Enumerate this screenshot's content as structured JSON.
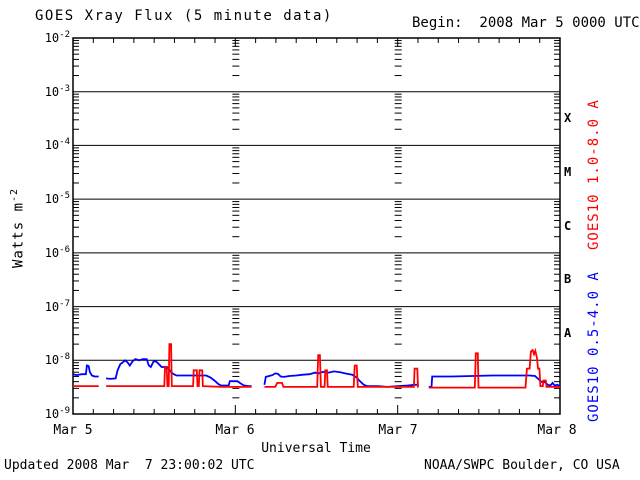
{
  "page": {
    "title": "GOES Xray Flux (5 minute data)",
    "begin_label": "Begin:  2008 Mar 5 0000 UTC",
    "footer_updated": "Updated 2008 Mar  7 23:00:02 UTC",
    "footer_source": "NOAA/SWPC Boulder, CO USA"
  },
  "chart_data": {
    "type": "line",
    "title": "GOES Xray Flux (5 minute data)",
    "begin": "Begin:  2008 Mar 5 0000 UTC",
    "xlabel": "Universal Time",
    "ylabel": {
      "text": "Watts m",
      "sup": "-2"
    },
    "x_axis": {
      "unit": "hours from 2008 Mar 5 0000 UTC",
      "range_hours": [
        0,
        72
      ],
      "major_tick_hours": 24,
      "minor_tick_hours": 3,
      "tick_labels": [
        "Mar 5",
        "Mar 6",
        "Mar 7",
        "Mar 8"
      ]
    },
    "y_axis": {
      "scale": "log",
      "range_watts_per_m2": [
        1e-09,
        0.01
      ],
      "tick_exponents": [
        -2,
        -3,
        -4,
        -5,
        -6,
        -7,
        -8,
        -9
      ],
      "grid": "horizontal solid lines at each decade; log minor ticks on side axes and at interior day boundaries"
    },
    "flare_class_bands": [
      "X",
      "M",
      "C",
      "B",
      "A"
    ],
    "colors": {
      "axis": "#000000",
      "red_series": "#ff0000",
      "blue_series": "#0000ff"
    },
    "series": [
      {
        "name": "GOES10 1.0-8.0 A",
        "color": "#ff0000",
        "segments": [
          [
            [
              0,
              3.3e-09
            ],
            [
              3.8,
              3.3e-09
            ]
          ],
          [
            [
              4.9,
              3.3e-09
            ],
            [
              13.5,
              3.3e-09
            ],
            [
              13.6,
              7.5e-09
            ],
            [
              13.85,
              7.5e-09
            ],
            [
              13.95,
              3.3e-09
            ],
            [
              14.15,
              3.3e-09
            ],
            [
              14.25,
              2e-08
            ],
            [
              14.5,
              2e-08
            ],
            [
              14.6,
              3.3e-09
            ],
            [
              17.75,
              3.3e-09
            ],
            [
              17.85,
              6.5e-09
            ],
            [
              18.3,
              6.5e-09
            ],
            [
              18.4,
              3.3e-09
            ],
            [
              18.6,
              3.3e-09
            ],
            [
              18.7,
              6.5e-09
            ],
            [
              19.1,
              6.5e-09
            ],
            [
              19.2,
              3.3e-09
            ],
            [
              22,
              3.2e-09
            ],
            [
              26.4,
              3.2e-09
            ]
          ],
          [
            [
              28.3,
              3.2e-09
            ],
            [
              29.9,
              3.2e-09
            ],
            [
              30.2,
              3.8e-09
            ],
            [
              30.9,
              3.8e-09
            ],
            [
              31.1,
              3.2e-09
            ],
            [
              36.1,
              3.2e-09
            ],
            [
              36.25,
              1.25e-08
            ],
            [
              36.5,
              1.25e-08
            ],
            [
              36.65,
              3.2e-09
            ],
            [
              37.2,
              3.2e-09
            ],
            [
              37.3,
              6.5e-09
            ],
            [
              37.55,
              6.5e-09
            ],
            [
              37.65,
              3.2e-09
            ],
            [
              41.5,
              3.2e-09
            ],
            [
              41.65,
              8e-09
            ],
            [
              41.95,
              8e-09
            ],
            [
              42.1,
              3.2e-09
            ],
            [
              50.4,
              3.2e-09
            ],
            [
              50.5,
              7e-09
            ],
            [
              50.9,
              7e-09
            ],
            [
              51.0,
              3.2e-09
            ],
            [
              51.1,
              3.2e-09
            ]
          ],
          [
            [
              52.6,
              3.1e-09
            ],
            [
              59.4,
              3.1e-09
            ],
            [
              59.55,
              1.35e-08
            ],
            [
              59.85,
              1.35e-08
            ],
            [
              59.95,
              3.1e-09
            ],
            [
              66.9,
              3.1e-09
            ],
            [
              67.1,
              7e-09
            ],
            [
              67.5,
              7e-09
            ],
            [
              67.7,
              1.45e-08
            ],
            [
              67.95,
              1.55e-08
            ],
            [
              68.15,
              1.3e-08
            ],
            [
              68.35,
              1.5e-08
            ],
            [
              68.6,
              1.1e-08
            ],
            [
              68.75,
              7e-09
            ],
            [
              68.95,
              7e-09
            ],
            [
              69.1,
              3.3e-09
            ],
            [
              69.45,
              3.3e-09
            ],
            [
              69.55,
              4.2e-09
            ],
            [
              69.9,
              4.2e-09
            ],
            [
              70.0,
              3.2e-09
            ],
            [
              72,
              3.2e-09
            ]
          ]
        ]
      },
      {
        "name": "GOES10 0.5-4.0 A",
        "color": "#0000ff",
        "segments": [
          [
            [
              0,
              5.5e-09
            ],
            [
              0.5,
              5.3e-09
            ],
            [
              1.3,
              5.5e-09
            ],
            [
              1.9,
              5.5e-09
            ],
            [
              2.05,
              8e-09
            ],
            [
              2.3,
              7.8e-09
            ],
            [
              2.5,
              6e-09
            ],
            [
              2.8,
              5.2e-09
            ],
            [
              3.2,
              5e-09
            ],
            [
              3.8,
              5e-09
            ]
          ],
          [
            [
              4.9,
              4.6e-09
            ],
            [
              5.5,
              4.5e-09
            ],
            [
              6.3,
              4.6e-09
            ],
            [
              6.6,
              6.5e-09
            ],
            [
              7.0,
              8.5e-09
            ],
            [
              7.3,
              9e-09
            ],
            [
              7.7,
              1e-08
            ],
            [
              8.1,
              9e-09
            ],
            [
              8.4,
              8e-09
            ],
            [
              8.8,
              9.5e-09
            ],
            [
              9.2,
              1.05e-08
            ],
            [
              9.8,
              1e-08
            ],
            [
              10.3,
              1.05e-08
            ],
            [
              10.9,
              1.05e-08
            ],
            [
              11.2,
              8e-09
            ],
            [
              11.5,
              7.5e-09
            ],
            [
              11.9,
              9.5e-09
            ],
            [
              12.3,
              9.5e-09
            ],
            [
              12.7,
              8.5e-09
            ],
            [
              13.1,
              7.5e-09
            ],
            [
              13.9,
              7.5e-09
            ],
            [
              14.1,
              7e-09
            ],
            [
              14.5,
              6e-09
            ],
            [
              14.9,
              5.5e-09
            ],
            [
              15.3,
              5.2e-09
            ],
            [
              19.7,
              5.2e-09
            ],
            [
              20.3,
              4.8e-09
            ],
            [
              20.9,
              4.2e-09
            ],
            [
              21.5,
              3.6e-09
            ],
            [
              21.9,
              3.4e-09
            ],
            [
              23.0,
              3.4e-09
            ],
            [
              23.2,
              4.1e-09
            ],
            [
              24.3,
              4.1e-09
            ],
            [
              24.8,
              3.7e-09
            ],
            [
              25.3,
              3.4e-09
            ],
            [
              26.0,
              3.3e-09
            ],
            [
              26.4,
              3.3e-09
            ]
          ],
          [
            [
              28.3,
              3.5e-09
            ],
            [
              28.5,
              4.9e-09
            ],
            [
              29.0,
              5.1e-09
            ],
            [
              29.5,
              5.3e-09
            ],
            [
              29.9,
              5.7e-09
            ],
            [
              30.3,
              5.6e-09
            ],
            [
              30.7,
              5e-09
            ],
            [
              31.2,
              4.9e-09
            ],
            [
              32.0,
              5.1e-09
            ],
            [
              33.0,
              5.2e-09
            ],
            [
              34.0,
              5.4e-09
            ],
            [
              35.0,
              5.5e-09
            ],
            [
              35.8,
              5.9e-09
            ],
            [
              36.3,
              5.7e-09
            ],
            [
              37.0,
              6.1e-09
            ],
            [
              37.8,
              5.9e-09
            ],
            [
              38.6,
              6.2e-09
            ],
            [
              39.5,
              6e-09
            ],
            [
              40.5,
              5.6e-09
            ],
            [
              41.3,
              5.4e-09
            ],
            [
              41.9,
              4.8e-09
            ],
            [
              42.5,
              4e-09
            ],
            [
              43.0,
              3.5e-09
            ],
            [
              43.5,
              3.3e-09
            ],
            [
              45.0,
              3.3e-09
            ],
            [
              46.5,
              3.2e-09
            ],
            [
              48.0,
              3.3e-09
            ],
            [
              49.5,
              3.4e-09
            ],
            [
              50.5,
              3.5e-09
            ],
            [
              51.1,
              3.5e-09
            ]
          ],
          [
            [
              52.6,
              3.2e-09
            ],
            [
              53.0,
              3.2e-09
            ],
            [
              53.1,
              5e-09
            ],
            [
              56.0,
              5e-09
            ],
            [
              59.0,
              5.1e-09
            ],
            [
              62.0,
              5.2e-09
            ],
            [
              65.0,
              5.2e-09
            ],
            [
              67.5,
              5.2e-09
            ],
            [
              68.3,
              5.1e-09
            ],
            [
              68.7,
              4.6e-09
            ],
            [
              69.2,
              4e-09
            ],
            [
              69.8,
              3.9e-09
            ],
            [
              70.2,
              3.5e-09
            ],
            [
              70.6,
              3.4e-09
            ],
            [
              70.9,
              3.8e-09
            ],
            [
              71.2,
              3.4e-09
            ],
            [
              71.6,
              3.5e-09
            ],
            [
              72,
              3.3e-09
            ]
          ]
        ]
      }
    ],
    "data_gaps_hours": [
      [
        3.8,
        4.9
      ],
      [
        26.4,
        28.3
      ],
      [
        51.1,
        52.6
      ]
    ]
  }
}
